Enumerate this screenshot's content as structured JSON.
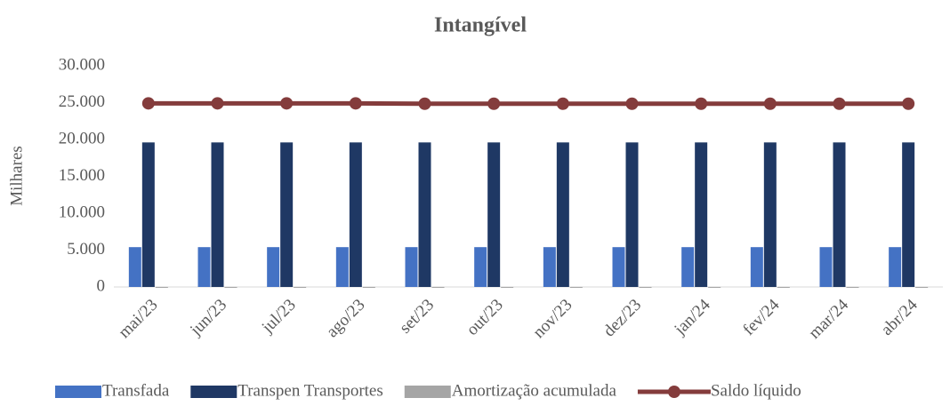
{
  "chart_data": {
    "type": "combo",
    "title": "Intangível",
    "y_label": "Milhares",
    "categories": [
      "mai/23",
      "jun/23",
      "jul/23",
      "ago/23",
      "set/23",
      "out/23",
      "nov/23",
      "dez/23",
      "jan/24",
      "fev/24",
      "mar/24",
      "abr/24"
    ],
    "series": [
      {
        "name": "Transfada",
        "type": "bar",
        "color": "#4472c4",
        "values": [
          5400,
          5400,
          5400,
          5400,
          5400,
          5400,
          5400,
          5400,
          5400,
          5400,
          5400,
          5400
        ]
      },
      {
        "name": "Transpen Transportes",
        "type": "bar",
        "color": "#1f3864",
        "values": [
          19600,
          19600,
          19600,
          19600,
          19600,
          19600,
          19600,
          19600,
          19600,
          19600,
          19600,
          19600
        ]
      },
      {
        "name": "Amortização acumulada",
        "type": "bar",
        "color": "#a5a5a5",
        "values": [
          -100,
          -100,
          -100,
          -100,
          -100,
          -100,
          -100,
          -100,
          -100,
          -100,
          -100,
          -100
        ]
      },
      {
        "name": "Saldo líquido",
        "type": "line",
        "color": "#843c3c",
        "values": [
          24900,
          24900,
          24900,
          24900,
          24850,
          24850,
          24850,
          24850,
          24850,
          24850,
          24850,
          24850
        ]
      }
    ],
    "ylim": [
      0,
      30000
    ],
    "yticks": [
      0,
      {
        "value": 5000,
        "label": "5.000"
      },
      {
        "value": 10000,
        "label": "10.000"
      },
      {
        "value": 15000,
        "label": "15.000"
      },
      {
        "value": 20000,
        "label": "20.000"
      },
      {
        "value": 25000,
        "label": "25.000"
      },
      {
        "value": 30000,
        "label": "30.000"
      }
    ],
    "grid": false,
    "legend": "bottom"
  }
}
